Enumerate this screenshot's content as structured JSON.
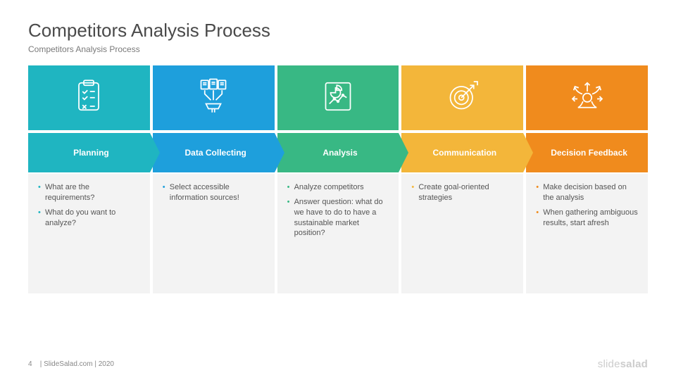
{
  "title": "Competitors Analysis Process",
  "subtitle": "Competitors Analysis Process",
  "colors": [
    "#1fb5c1",
    "#1e9fdc",
    "#38b884",
    "#f3b63a",
    "#f08b1d"
  ],
  "steps": [
    {
      "label": "Planning",
      "bullets": [
        "What are the requirements?",
        "What do you want to analyze?"
      ]
    },
    {
      "label": "Data Collecting",
      "bullets": [
        "Select accessible information sources!"
      ]
    },
    {
      "label": "Analysis",
      "bullets": [
        "Analyze competitors",
        "Answer question: what do we have to do to have a sustainable market position?"
      ]
    },
    {
      "label": "Communication",
      "bullets": [
        "Create goal-oriented strategies"
      ]
    },
    {
      "label": "Decision Feedback",
      "bullets": [
        "Make decision based on the analysis",
        "When gathering ambiguous results, start afresh"
      ]
    }
  ],
  "footer": {
    "page": "4",
    "text": "| SlideSalad.com | 2020",
    "brand1": "slide",
    "brand2": "salad"
  }
}
